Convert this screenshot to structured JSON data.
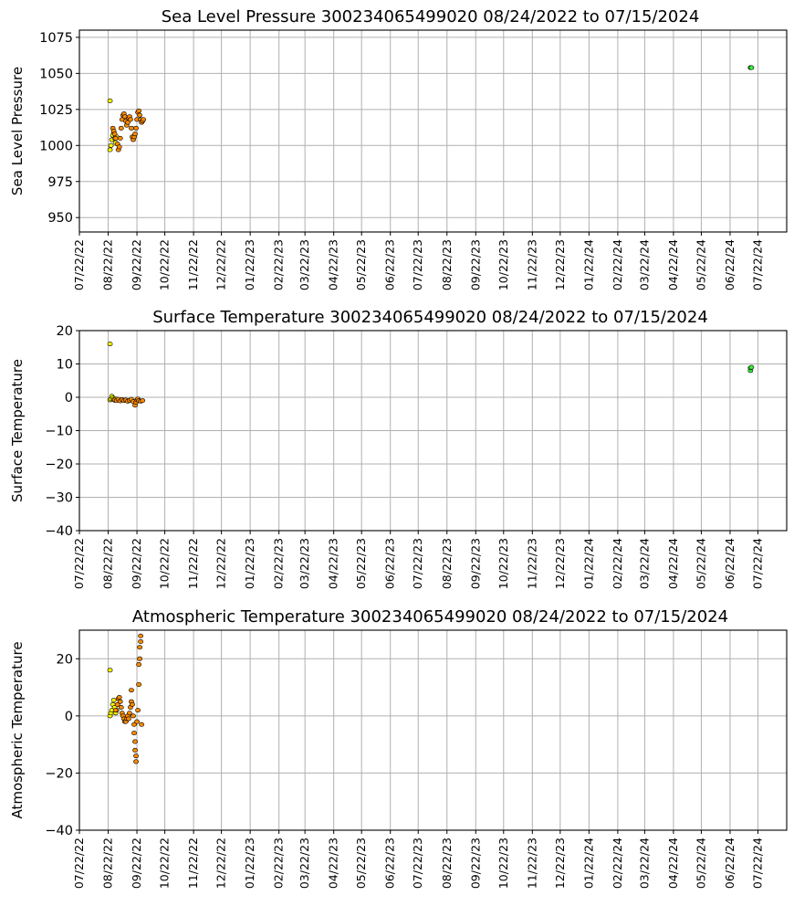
{
  "chart_data": [
    {
      "type": "scatter",
      "title": "Sea Level Pressure 300234065499020  08/24/2022 to 07/15/2024",
      "xlabel": "",
      "ylabel": "Sea Level Pressure",
      "ylim": [
        940,
        1080
      ],
      "yticks": [
        "950",
        "975",
        "1000",
        "1025",
        "1050",
        "1075"
      ],
      "xlim": [
        "2022-07-22",
        "2024-08-22"
      ],
      "xticks": [
        "07/22/22",
        "08/22/22",
        "09/22/22",
        "10/22/22",
        "11/22/22",
        "12/22/22",
        "01/22/23",
        "02/22/23",
        "03/22/23",
        "04/22/23",
        "05/22/23",
        "06/22/23",
        "07/22/23",
        "08/22/23",
        "09/22/23",
        "10/22/23",
        "11/22/23",
        "12/22/23",
        "01/22/24",
        "02/22/24",
        "03/22/24",
        "04/22/24",
        "05/22/24",
        "06/22/24",
        "07/22/24"
      ],
      "grid": true,
      "colors": {
        "early": "#ffff00",
        "mid": "#ff8c00",
        "late": "#33ff33"
      },
      "series": [
        {
          "color": "#ffff00",
          "points": [
            [
              "2022-08-24",
              1031
            ],
            [
              "2022-08-24",
              997
            ],
            [
              "2022-08-25",
              1000
            ],
            [
              "2022-08-26",
              1004
            ],
            [
              "2022-08-27",
              1007
            ],
            [
              "2022-08-28",
              1009
            ],
            [
              "2022-08-29",
              1005
            ],
            [
              "2022-08-30",
              1002
            ],
            [
              "2022-08-31",
              1006
            ]
          ]
        },
        {
          "color": "#ff8c00",
          "points": [
            [
              "2022-08-27",
              1012
            ],
            [
              "2022-08-28",
              1010
            ],
            [
              "2022-08-29",
              1008
            ],
            [
              "2022-08-30",
              1005
            ],
            [
              "2022-09-01",
              1001
            ],
            [
              "2022-09-02",
              997
            ],
            [
              "2022-09-03",
              999
            ],
            [
              "2022-09-04",
              1005
            ],
            [
              "2022-09-05",
              1012
            ],
            [
              "2022-09-06",
              1018
            ],
            [
              "2022-09-07",
              1021
            ],
            [
              "2022-09-08",
              1022
            ],
            [
              "2022-09-09",
              1020
            ],
            [
              "2022-09-10",
              1017
            ],
            [
              "2022-09-11",
              1014
            ],
            [
              "2022-09-12",
              1016
            ],
            [
              "2022-09-13",
              1019
            ],
            [
              "2022-09-14",
              1020
            ],
            [
              "2022-09-15",
              1018
            ],
            [
              "2022-09-16",
              1012
            ],
            [
              "2022-09-17",
              1006
            ],
            [
              "2022-09-18",
              1004
            ],
            [
              "2022-09-19",
              1006
            ],
            [
              "2022-09-20",
              1008
            ],
            [
              "2022-09-21",
              1012
            ],
            [
              "2022-09-22",
              1018
            ],
            [
              "2022-09-23",
              1023
            ],
            [
              "2022-09-24",
              1024
            ],
            [
              "2022-09-25",
              1021
            ],
            [
              "2022-09-26",
              1018
            ],
            [
              "2022-09-27",
              1016
            ],
            [
              "2022-09-28",
              1017
            ],
            [
              "2022-09-29",
              1018
            ]
          ]
        },
        {
          "color": "#33ff33",
          "points": [
            [
              "2024-07-14",
              1054
            ],
            [
              "2024-07-15",
              1054
            ]
          ]
        }
      ]
    },
    {
      "type": "scatter",
      "title": "Surface Temperature 300234065499020  08/24/2022 to 07/15/2024",
      "xlabel": "",
      "ylabel": "Surface Temperature",
      "ylim": [
        -40,
        20
      ],
      "yticks": [
        "−40",
        "−30",
        "−20",
        "−10",
        "0",
        "10",
        "20"
      ],
      "xlim": [
        "2022-07-22",
        "2024-08-22"
      ],
      "xticks": [
        "07/22/22",
        "08/22/22",
        "09/22/22",
        "10/22/22",
        "11/22/22",
        "12/22/22",
        "01/22/23",
        "02/22/23",
        "03/22/23",
        "04/22/23",
        "05/22/23",
        "06/22/23",
        "07/22/23",
        "08/22/23",
        "09/22/23",
        "10/22/23",
        "11/22/23",
        "12/22/23",
        "01/22/24",
        "02/22/24",
        "03/22/24",
        "04/22/24",
        "05/22/24",
        "06/22/24",
        "07/22/24"
      ],
      "grid": true,
      "colors": {
        "early": "#ffff00",
        "mid": "#ff8c00",
        "late": "#33ff33"
      },
      "series": [
        {
          "color": "#ffff00",
          "points": [
            [
              "2022-08-24",
              16
            ],
            [
              "2022-08-24",
              -0.8
            ],
            [
              "2022-08-25",
              -0.5
            ],
            [
              "2022-08-26",
              0.3
            ],
            [
              "2022-08-27",
              -0.2
            ],
            [
              "2022-08-28",
              -0.6
            ],
            [
              "2022-08-29",
              -0.9
            ],
            [
              "2022-08-30",
              -0.4
            ]
          ]
        },
        {
          "color": "#ff8c00",
          "points": [
            [
              "2022-08-29",
              -0.8
            ],
            [
              "2022-08-31",
              -1.0
            ],
            [
              "2022-09-02",
              -0.6
            ],
            [
              "2022-09-04",
              -1.1
            ],
            [
              "2022-09-06",
              -0.7
            ],
            [
              "2022-09-08",
              -1.0
            ],
            [
              "2022-09-10",
              -0.8
            ],
            [
              "2022-09-12",
              -1.2
            ],
            [
              "2022-09-14",
              -0.9
            ],
            [
              "2022-09-16",
              -0.6
            ],
            [
              "2022-09-18",
              -1.3
            ],
            [
              "2022-09-20",
              -2.4
            ],
            [
              "2022-09-21",
              -1.5
            ],
            [
              "2022-09-22",
              -0.8
            ],
            [
              "2022-09-23",
              -0.5
            ],
            [
              "2022-09-24",
              -1.0
            ],
            [
              "2022-09-26",
              -1.2
            ],
            [
              "2022-09-28",
              -1.0
            ]
          ]
        },
        {
          "color": "#33ff33",
          "points": [
            [
              "2024-07-14",
              8
            ],
            [
              "2024-07-14",
              8.8
            ],
            [
              "2024-07-15",
              9
            ]
          ]
        }
      ]
    },
    {
      "type": "scatter",
      "title": "Atmospheric Temperature 300234065499020  08/24/2022 to 07/15/2024",
      "xlabel": "",
      "ylabel": "Atmospheric Temperature",
      "ylim": [
        -40,
        30
      ],
      "yticks": [
        "−40",
        "−20",
        "0",
        "20"
      ],
      "xlim": [
        "2022-07-22",
        "2024-08-22"
      ],
      "xticks": [
        "07/22/22",
        "08/22/22",
        "09/22/22",
        "10/22/22",
        "11/22/22",
        "12/22/22",
        "01/22/23",
        "02/22/23",
        "03/22/23",
        "04/22/23",
        "05/22/23",
        "06/22/23",
        "07/22/23",
        "08/22/23",
        "09/22/23",
        "10/22/23",
        "11/22/23",
        "12/22/23",
        "01/22/24",
        "02/22/24",
        "03/22/24",
        "04/22/24",
        "05/22/24",
        "06/22/24",
        "07/22/24"
      ],
      "grid": true,
      "colors": {
        "early": "#ffff00",
        "mid": "#ff8c00",
        "late": "#33ff33"
      },
      "series": [
        {
          "color": "#ffff00",
          "points": [
            [
              "2022-08-24",
              16
            ],
            [
              "2022-08-24",
              0
            ],
            [
              "2022-08-25",
              1
            ],
            [
              "2022-08-26",
              2
            ],
            [
              "2022-08-27",
              4
            ],
            [
              "2022-08-28",
              5.5
            ],
            [
              "2022-08-29",
              3
            ],
            [
              "2022-08-30",
              1
            ],
            [
              "2022-08-31",
              2
            ]
          ]
        },
        {
          "color": "#ff8c00",
          "points": [
            [
              "2022-08-30",
              2
            ],
            [
              "2022-09-01",
              4
            ],
            [
              "2022-09-02",
              6
            ],
            [
              "2022-09-03",
              6.5
            ],
            [
              "2022-09-04",
              5
            ],
            [
              "2022-09-05",
              3
            ],
            [
              "2022-09-06",
              1
            ],
            [
              "2022-09-07",
              0
            ],
            [
              "2022-09-08",
              -1
            ],
            [
              "2022-09-09",
              -2
            ],
            [
              "2022-09-10",
              -2
            ],
            [
              "2022-09-11",
              -1
            ],
            [
              "2022-09-12",
              0
            ],
            [
              "2022-09-13",
              -1
            ],
            [
              "2022-09-14",
              1
            ],
            [
              "2022-09-15",
              3
            ],
            [
              "2022-09-16",
              5
            ],
            [
              "2022-09-16",
              9
            ],
            [
              "2022-09-17",
              4
            ],
            [
              "2022-09-18",
              0
            ],
            [
              "2022-09-19",
              -3
            ],
            [
              "2022-09-19",
              -6
            ],
            [
              "2022-09-20",
              -9
            ],
            [
              "2022-09-20",
              -12
            ],
            [
              "2022-09-21",
              -14
            ],
            [
              "2022-09-21",
              -16
            ],
            [
              "2022-09-22",
              -2
            ],
            [
              "2022-09-23",
              2
            ],
            [
              "2022-09-24",
              11
            ],
            [
              "2022-09-24",
              18
            ],
            [
              "2022-09-25",
              20
            ],
            [
              "2022-09-25",
              24
            ],
            [
              "2022-09-26",
              26
            ],
            [
              "2022-09-26",
              28
            ],
            [
              "2022-09-27",
              -3
            ]
          ]
        }
      ]
    }
  ]
}
